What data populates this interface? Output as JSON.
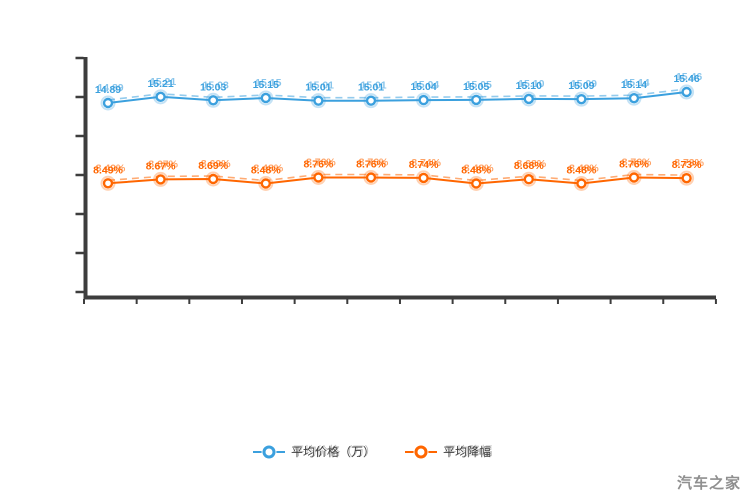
{
  "watermark": "汽车之家",
  "legend": [
    {
      "label": "平均价格（万）",
      "color": "#3BA0DE"
    },
    {
      "label": "平均降幅",
      "color": "#FF6600"
    }
  ],
  "colors": {
    "axis": "#3d3d3d",
    "series_blue": "#3BA0DE",
    "series_orange": "#FF6600",
    "watermark_text": "#8f8f8f",
    "legend_text": "#3f3f3f"
  },
  "chart_data": {
    "type": "line",
    "title": "",
    "xlabel": "",
    "ylabel": "",
    "x_tick_labels_visible": false,
    "y_tick_labels_visible": false,
    "grid": false,
    "legend_position": "bottom-center",
    "categories": [
      "",
      "",
      "",
      "",
      "",
      "",
      "",
      "",
      "",
      "",
      "",
      ""
    ],
    "series": [
      {
        "name": "平均价格（万）",
        "color": "#3BA0DE",
        "unit": "万",
        "values": [
          14.89,
          15.21,
          15.03,
          15.15,
          15.01,
          15.01,
          15.04,
          15.05,
          15.1,
          15.09,
          15.14,
          15.46
        ],
        "labels": [
          "14.89",
          "15.21",
          "15.03",
          "15.15",
          "15.01",
          "15.01",
          "15.04",
          "15.05",
          "15.10",
          "15.09",
          "15.14",
          "15.46"
        ]
      },
      {
        "name": "平均降幅",
        "color": "#FF6600",
        "unit": "%",
        "values": [
          8.49,
          8.67,
          8.69,
          8.48,
          8.76,
          8.76,
          8.74,
          8.48,
          8.68,
          8.48,
          8.76,
          8.73
        ],
        "labels": [
          "8.49%",
          "8.67%",
          "8.69%",
          "8.48%",
          "8.76%",
          "8.76%",
          "8.74%",
          "8.48%",
          "8.68%",
          "8.48%",
          "8.76%",
          "8.73%"
        ]
      }
    ]
  }
}
